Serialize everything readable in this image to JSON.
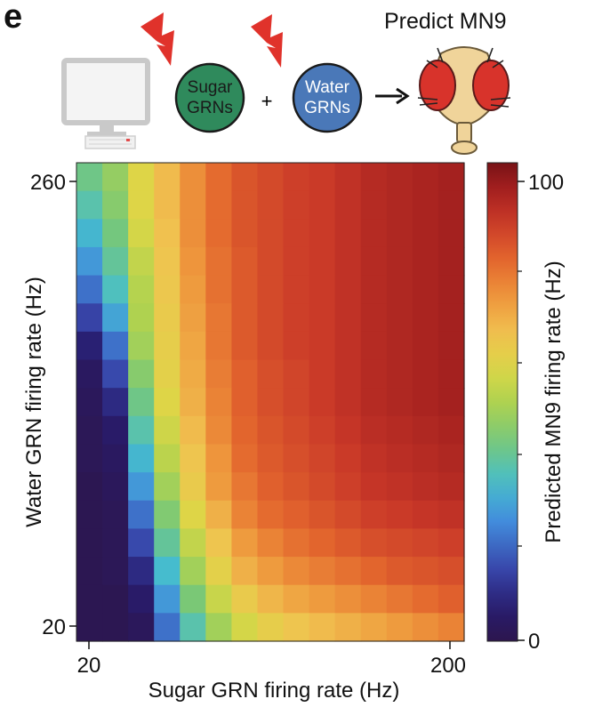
{
  "panel_letter": "e",
  "schematic": {
    "sugar_label": [
      "Sugar",
      "GRNs"
    ],
    "water_label": [
      "Water",
      "GRNs"
    ],
    "plus": "+",
    "predict_title": "Predict MN9",
    "colors": {
      "sugar": "#2f8a5c",
      "water": "#4a78b8",
      "bolt": "#e0322b"
    }
  },
  "chart_data": {
    "type": "heatmap",
    "xlabel": "Sugar GRN firing rate (Hz)",
    "ylabel": "Water GRN firing rate (Hz)",
    "x_ticks": [
      "20",
      "200"
    ],
    "y_ticks": [
      "260",
      "20"
    ],
    "xlim": [
      20,
      200
    ],
    "ylim": [
      20,
      260
    ],
    "colorbar": {
      "label": "Predicted MN9 firing rate (Hz)",
      "ticks": [
        "100",
        "0"
      ],
      "range": [
        0,
        104
      ],
      "colormap": "turbo"
    },
    "columns_hz": [
      20,
      33,
      46,
      59,
      72,
      85,
      98,
      111,
      124,
      137,
      150,
      163,
      176,
      189,
      200
    ],
    "rows_hz_top_to_bottom": [
      260,
      246,
      231,
      216,
      201,
      186,
      171,
      156,
      141,
      126,
      111,
      96,
      81,
      66,
      50,
      35,
      20
    ],
    "values_top_to_bottom": [
      [
        42,
        48,
        60,
        68,
        76,
        82,
        86,
        88,
        90,
        91,
        93,
        95,
        96,
        97,
        98
      ],
      [
        38,
        46,
        60,
        68,
        76,
        82,
        86,
        88,
        90,
        91,
        93,
        95,
        96,
        97,
        98
      ],
      [
        33,
        43,
        58,
        67,
        76,
        82,
        86,
        88,
        90,
        91,
        93,
        95,
        96,
        97,
        98
      ],
      [
        28,
        40,
        55,
        66,
        75,
        81,
        85,
        88,
        90,
        91,
        93,
        95,
        96,
        97,
        98
      ],
      [
        22,
        36,
        53,
        65,
        74,
        81,
        85,
        88,
        90,
        91,
        93,
        95,
        96,
        97,
        98
      ],
      [
        15,
        30,
        52,
        64,
        73,
        80,
        85,
        88,
        90,
        91,
        93,
        95,
        96,
        97,
        98
      ],
      [
        8,
        22,
        50,
        63,
        72,
        80,
        85,
        88,
        90,
        91,
        93,
        95,
        96,
        97,
        98
      ],
      [
        4,
        16,
        46,
        62,
        71,
        79,
        84,
        87,
        89,
        91,
        93,
        95,
        96,
        97,
        98
      ],
      [
        3,
        10,
        42,
        60,
        70,
        78,
        84,
        87,
        89,
        91,
        93,
        95,
        96,
        97,
        98
      ],
      [
        2,
        6,
        38,
        57,
        68,
        77,
        83,
        86,
        88,
        90,
        92,
        94,
        95,
        96,
        97
      ],
      [
        2,
        4,
        33,
        54,
        66,
        75,
        82,
        85,
        87,
        89,
        91,
        93,
        94,
        95,
        96
      ],
      [
        1,
        3,
        28,
        50,
        64,
        74,
        80,
        84,
        86,
        88,
        90,
        92,
        93,
        94,
        95
      ],
      [
        1,
        2,
        22,
        45,
        60,
        70,
        78,
        82,
        84,
        86,
        88,
        90,
        91,
        92,
        93
      ],
      [
        1,
        2,
        16,
        40,
        55,
        66,
        74,
        78,
        81,
        83,
        85,
        87,
        88,
        89,
        90
      ],
      [
        1,
        2,
        10,
        34,
        50,
        62,
        70,
        74,
        77,
        79,
        81,
        83,
        85,
        86,
        87
      ],
      [
        1,
        1,
        6,
        28,
        44,
        56,
        64,
        69,
        72,
        74,
        76,
        78,
        80,
        82,
        84
      ],
      [
        1,
        1,
        3,
        22,
        38,
        50,
        58,
        63,
        66,
        68,
        70,
        72,
        74,
        76,
        78
      ]
    ]
  }
}
